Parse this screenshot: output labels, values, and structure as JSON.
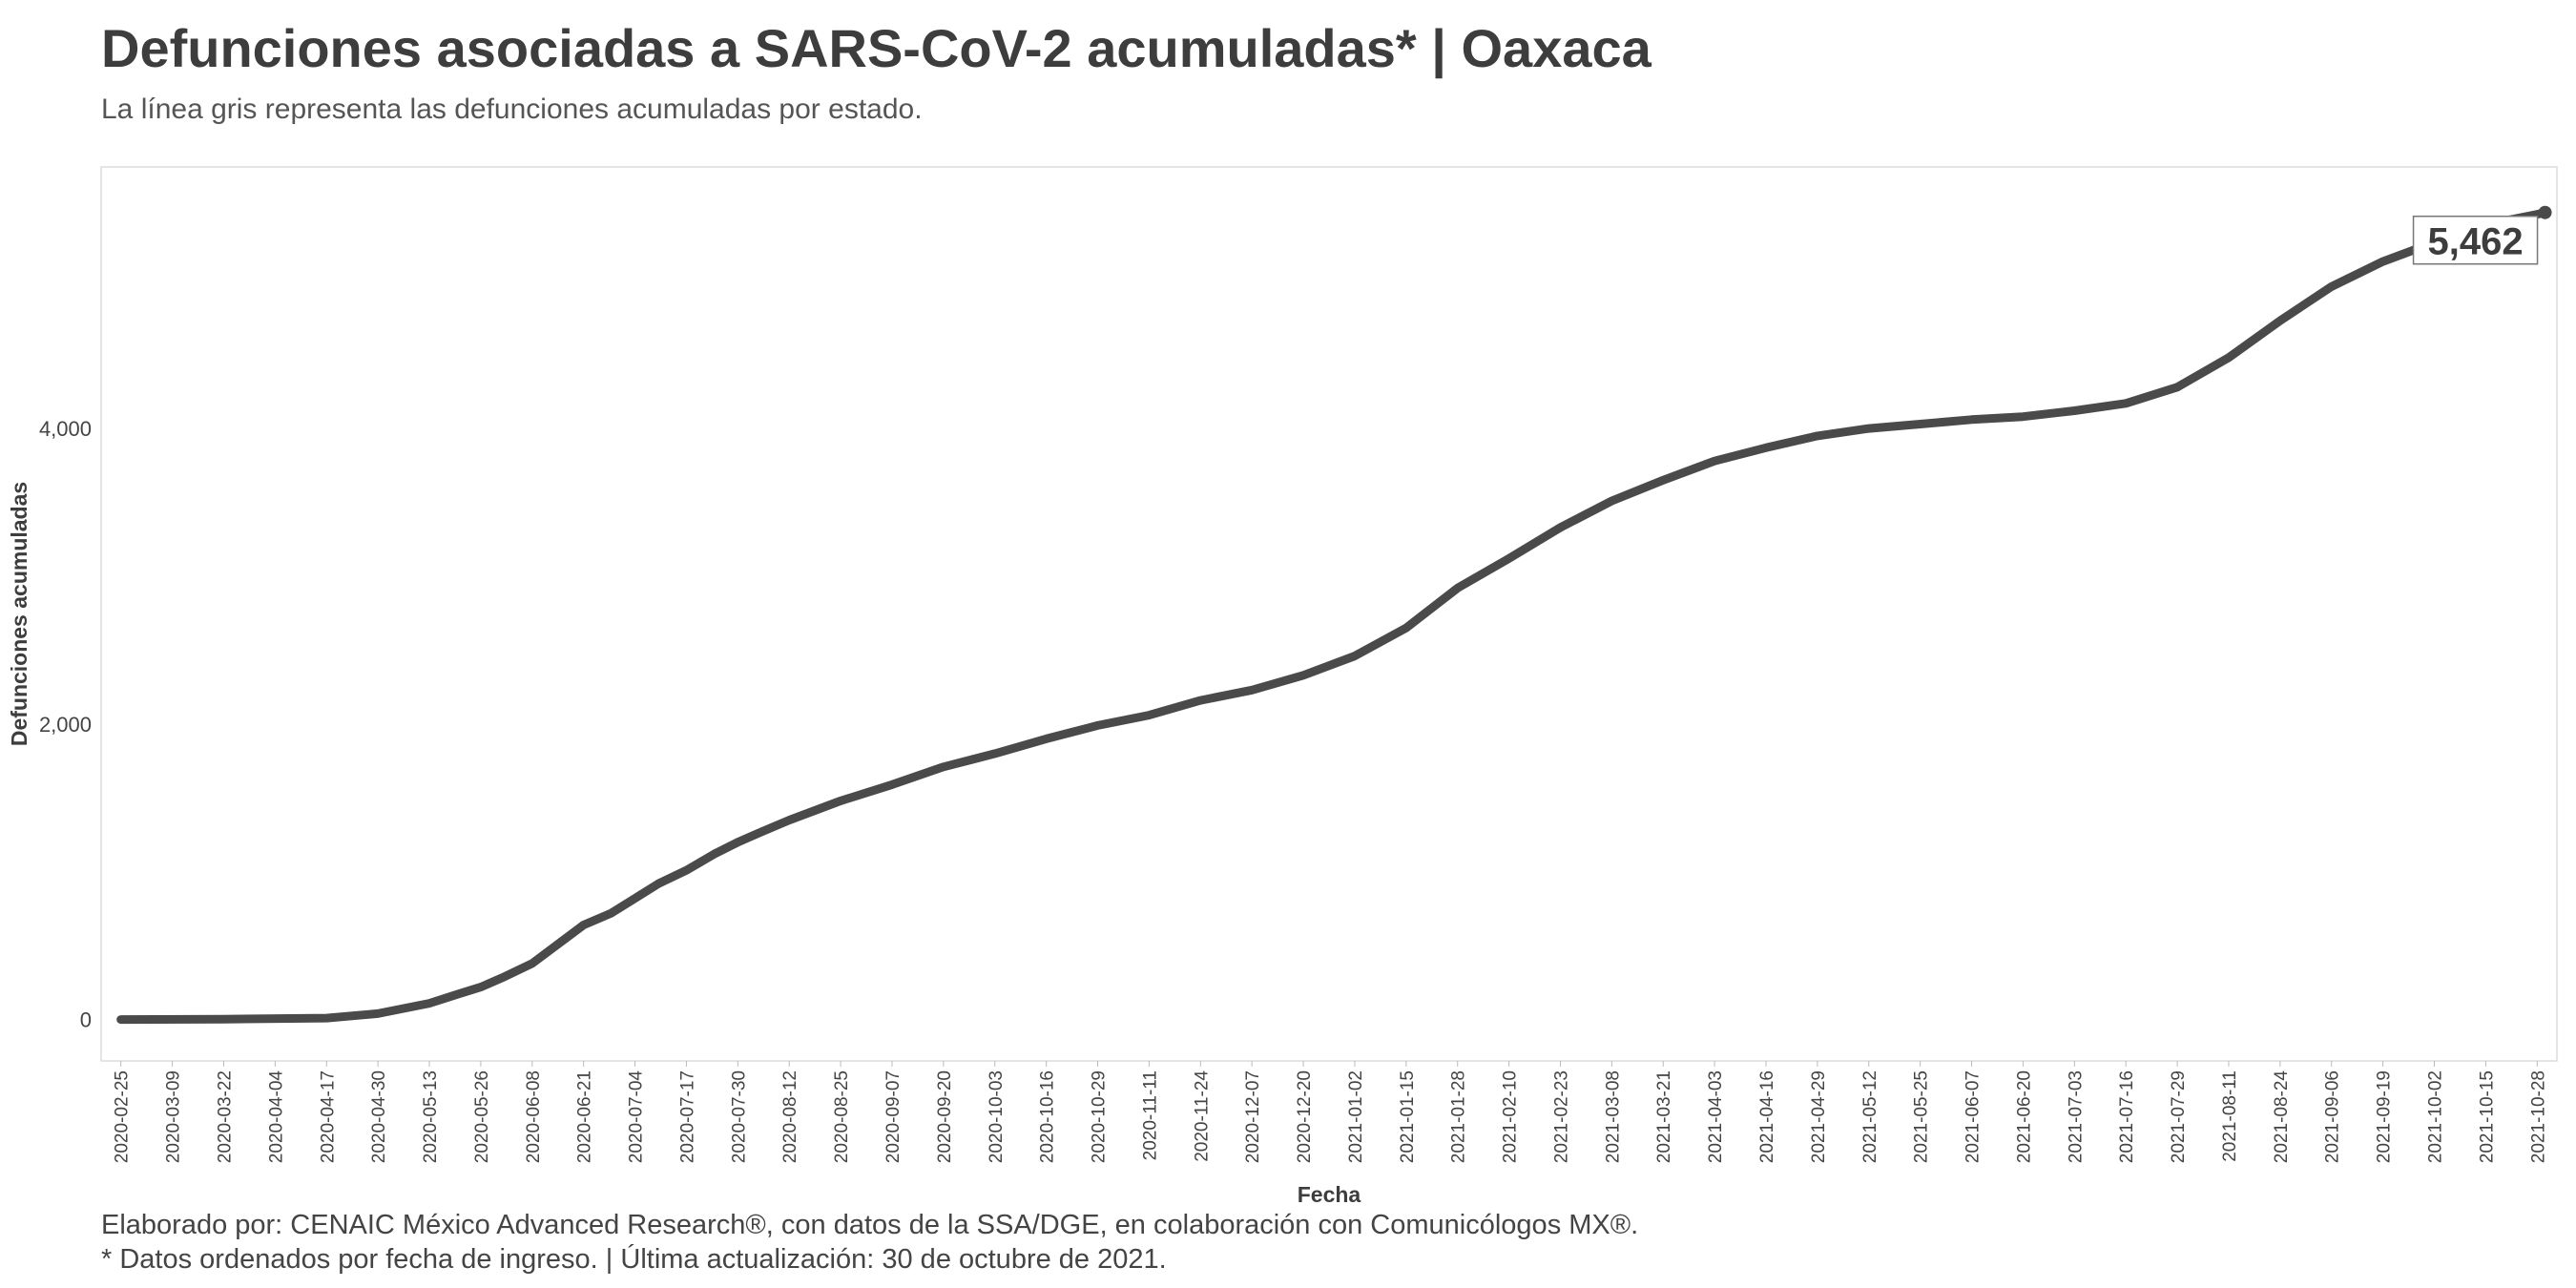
{
  "title": "Defunciones asociadas a SARS-CoV-2 acumuladas* | Oaxaca",
  "subtitle": "La línea gris representa las defunciones acumuladas por estado.",
  "caption_line1": "Elaborado por: CENAIC México Advanced Research®, con datos de la SSA/DGE, en colaboración con Comunicólogos MX®.",
  "caption_line2": "* Datos ordenados por fecha de ingreso. | Última actualización: 30 de octubre de 2021.",
  "chart_data": {
    "type": "line",
    "xlabel": "Fecha",
    "ylabel": "Defunciones acumuladas",
    "xlim": [
      "2020-02-20",
      "2021-11-02"
    ],
    "ylim": [
      -280,
      5770
    ],
    "x_ticks": [
      "2020-02-25",
      "2020-03-09",
      "2020-03-22",
      "2020-04-04",
      "2020-04-17",
      "2020-04-30",
      "2020-05-13",
      "2020-05-26",
      "2020-06-08",
      "2020-06-21",
      "2020-07-04",
      "2020-07-17",
      "2020-07-30",
      "2020-08-12",
      "2020-08-25",
      "2020-09-07",
      "2020-09-20",
      "2020-10-03",
      "2020-10-16",
      "2020-10-29",
      "2020-11-11",
      "2020-11-24",
      "2020-12-07",
      "2020-12-20",
      "2021-01-02",
      "2021-01-15",
      "2021-01-28",
      "2021-02-10",
      "2021-02-23",
      "2021-03-08",
      "2021-03-21",
      "2021-04-03",
      "2021-04-16",
      "2021-04-29",
      "2021-05-12",
      "2021-05-25",
      "2021-06-07",
      "2021-06-20",
      "2021-07-03",
      "2021-07-16",
      "2021-07-29",
      "2021-08-11",
      "2021-08-24",
      "2021-09-06",
      "2021-09-19",
      "2021-10-02",
      "2021-10-15",
      "2021-10-28"
    ],
    "y_ticks": [
      0,
      2000,
      4000
    ],
    "y_tick_labels": [
      "0",
      "2,000",
      "4,000"
    ],
    "grid": false,
    "line_color": "#4a4a4a",
    "end_label": "5,462",
    "end_value": 5462,
    "series": [
      {
        "x": [
          "2020-02-25",
          "2020-03-22",
          "2020-04-17",
          "2020-04-30",
          "2020-05-13",
          "2020-05-20",
          "2020-05-26",
          "2020-06-01",
          "2020-06-08",
          "2020-06-15",
          "2020-06-21",
          "2020-06-28",
          "2020-07-04",
          "2020-07-10",
          "2020-07-17",
          "2020-07-24",
          "2020-07-30",
          "2020-08-05",
          "2020-08-12",
          "2020-08-25",
          "2020-09-07",
          "2020-09-20",
          "2020-10-03",
          "2020-10-16",
          "2020-10-29",
          "2020-11-11",
          "2020-11-24",
          "2020-12-07",
          "2020-12-20",
          "2021-01-02",
          "2021-01-15",
          "2021-01-28",
          "2021-02-10",
          "2021-02-23",
          "2021-03-08",
          "2021-03-21",
          "2021-04-03",
          "2021-04-16",
          "2021-04-29",
          "2021-05-12",
          "2021-05-25",
          "2021-06-07",
          "2021-06-20",
          "2021-07-03",
          "2021-07-16",
          "2021-07-29",
          "2021-08-11",
          "2021-08-24",
          "2021-09-06",
          "2021-09-19",
          "2021-10-02",
          "2021-10-15",
          "2021-10-28",
          "2021-10-30"
        ],
        "values": [
          0,
          3,
          10,
          40,
          110,
          170,
          220,
          290,
          380,
          520,
          640,
          720,
          820,
          920,
          1010,
          1120,
          1200,
          1270,
          1350,
          1480,
          1590,
          1710,
          1800,
          1900,
          1990,
          2060,
          2160,
          2230,
          2330,
          2460,
          2650,
          2920,
          3120,
          3330,
          3510,
          3650,
          3780,
          3870,
          3950,
          4000,
          4030,
          4060,
          4080,
          4120,
          4170,
          4280,
          4480,
          4730,
          4960,
          5130,
          5260,
          5380,
          5450,
          5462
        ]
      }
    ]
  }
}
